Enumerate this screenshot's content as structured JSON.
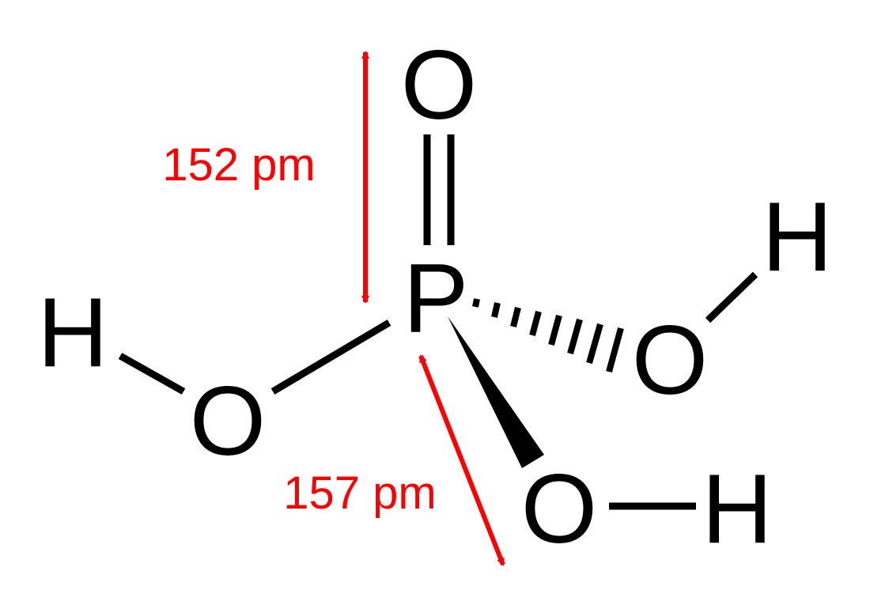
{
  "atoms": {
    "o_top": "O",
    "p": "P",
    "h_left": "H",
    "o_left": "O",
    "o_right": "O",
    "h_right": "H",
    "o_bottom": "O",
    "h_bottom": "H"
  },
  "annotations": {
    "double_bond_length": "152 pm",
    "single_bond_length": "157 pm"
  },
  "colors": {
    "bond": "#000000",
    "annotation": "#ff0000"
  }
}
